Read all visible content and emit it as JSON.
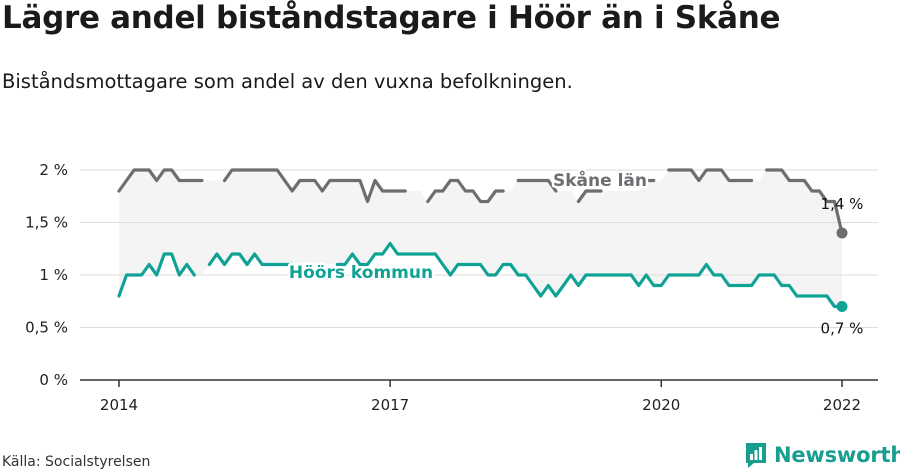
{
  "header": {
    "title": "Lägre andel biståndstagare i Höör än i Skåne",
    "subtitle": "Biståndsmottagare som andel av den vuxna befolkningen."
  },
  "footer": {
    "source": "Källa: Socialstyrelsen",
    "brand": "Newsworthy",
    "brand_icon": "newsworthy-logo-icon"
  },
  "colors": {
    "skane": "#6e6e72",
    "hoor": "#10a395",
    "band": "#f4f4f5",
    "grid": "#dedede",
    "axis": "#555555"
  },
  "chart_data": {
    "type": "line",
    "title": "Lägre andel biståndstagare i Höör än i Skåne",
    "subtitle": "Biståndsmottagare som andel av den vuxna befolkningen.",
    "x_unit": "year",
    "xlim": [
      2014,
      2022.4
    ],
    "ylim": [
      0,
      2.0
    ],
    "grid": true,
    "y_ticks": [
      {
        "value": 0,
        "label": "0 %"
      },
      {
        "value": 0.5,
        "label": "0,5 %"
      },
      {
        "value": 1.0,
        "label": "1 %"
      },
      {
        "value": 1.5,
        "label": "1,5 %"
      },
      {
        "value": 2.0,
        "label": "2 %"
      }
    ],
    "x_ticks": [
      {
        "value": 2014,
        "label": "2014"
      },
      {
        "value": 2017,
        "label": "2017"
      },
      {
        "value": 2020,
        "label": "2020"
      },
      {
        "value": 2022,
        "label": "2022"
      }
    ],
    "series": [
      {
        "name": "Skåne län",
        "color": "#6e6e72",
        "end_label": "1,4 %",
        "points": [
          [
            2014.0,
            1.8
          ],
          [
            2014.083,
            1.9
          ],
          [
            2014.167,
            2.0
          ],
          [
            2014.25,
            2.0
          ],
          [
            2014.333,
            2.0
          ],
          [
            2014.417,
            1.9
          ],
          [
            2014.5,
            2.0
          ],
          [
            2014.583,
            2.0
          ],
          [
            2014.667,
            1.9
          ],
          [
            2014.75,
            1.9
          ],
          [
            2014.833,
            1.9
          ],
          [
            2014.917,
            1.9
          ],
          [
            2015.0,
            null
          ],
          [
            2015.083,
            null
          ],
          [
            2015.167,
            1.9
          ],
          [
            2015.25,
            2.0
          ],
          [
            2015.333,
            2.0
          ],
          [
            2015.417,
            2.0
          ],
          [
            2015.5,
            2.0
          ],
          [
            2015.583,
            2.0
          ],
          [
            2015.667,
            2.0
          ],
          [
            2015.75,
            2.0
          ],
          [
            2015.833,
            1.9
          ],
          [
            2015.917,
            1.8
          ],
          [
            2016.0,
            1.9
          ],
          [
            2016.083,
            1.9
          ],
          [
            2016.167,
            1.9
          ],
          [
            2016.25,
            1.8
          ],
          [
            2016.333,
            1.9
          ],
          [
            2016.417,
            1.9
          ],
          [
            2016.5,
            1.9
          ],
          [
            2016.583,
            1.9
          ],
          [
            2016.667,
            1.9
          ],
          [
            2016.75,
            1.7
          ],
          [
            2016.833,
            1.9
          ],
          [
            2016.917,
            1.8
          ],
          [
            2017.0,
            1.8
          ],
          [
            2017.083,
            1.8
          ],
          [
            2017.167,
            1.8
          ],
          [
            2017.25,
            null
          ],
          [
            2017.333,
            null
          ],
          [
            2017.417,
            1.7
          ],
          [
            2017.5,
            1.8
          ],
          [
            2017.583,
            1.8
          ],
          [
            2017.667,
            1.9
          ],
          [
            2017.75,
            1.9
          ],
          [
            2017.833,
            1.8
          ],
          [
            2017.917,
            1.8
          ],
          [
            2018.0,
            1.7
          ],
          [
            2018.083,
            1.7
          ],
          [
            2018.167,
            1.8
          ],
          [
            2018.25,
            1.8
          ],
          [
            2018.333,
            null
          ],
          [
            2018.417,
            1.9
          ],
          [
            2018.5,
            1.9
          ],
          [
            2018.583,
            1.9
          ],
          [
            2018.667,
            1.9
          ],
          [
            2018.75,
            1.9
          ],
          [
            2018.833,
            1.8
          ],
          [
            2018.917,
            null
          ],
          [
            2019.0,
            null
          ],
          [
            2019.083,
            1.7
          ],
          [
            2019.167,
            1.8
          ],
          [
            2019.25,
            1.8
          ],
          [
            2019.333,
            1.8
          ],
          [
            2019.417,
            null
          ],
          [
            2019.5,
            null
          ],
          [
            2019.583,
            null
          ],
          [
            2019.667,
            null
          ],
          [
            2019.75,
            null
          ],
          [
            2019.833,
            1.9
          ],
          [
            2019.917,
            1.9
          ],
          [
            2020.0,
            null
          ],
          [
            2020.083,
            2.0
          ],
          [
            2020.167,
            2.0
          ],
          [
            2020.25,
            2.0
          ],
          [
            2020.333,
            2.0
          ],
          [
            2020.417,
            1.9
          ],
          [
            2020.5,
            2.0
          ],
          [
            2020.583,
            2.0
          ],
          [
            2020.667,
            2.0
          ],
          [
            2020.75,
            1.9
          ],
          [
            2020.833,
            1.9
          ],
          [
            2020.917,
            1.9
          ],
          [
            2021.0,
            1.9
          ],
          [
            2021.083,
            null
          ],
          [
            2021.167,
            2.0
          ],
          [
            2021.25,
            2.0
          ],
          [
            2021.333,
            2.0
          ],
          [
            2021.417,
            1.9
          ],
          [
            2021.5,
            1.9
          ],
          [
            2021.583,
            1.9
          ],
          [
            2021.667,
            1.8
          ],
          [
            2021.75,
            1.8
          ],
          [
            2021.833,
            1.7
          ],
          [
            2021.917,
            1.7
          ],
          [
            2022.0,
            1.4
          ]
        ]
      },
      {
        "name": "Höörs kommun",
        "color": "#10a395",
        "end_label": "0,7 %",
        "points": [
          [
            2014.0,
            0.8
          ],
          [
            2014.083,
            1.0
          ],
          [
            2014.167,
            1.0
          ],
          [
            2014.25,
            1.0
          ],
          [
            2014.333,
            1.1
          ],
          [
            2014.417,
            1.0
          ],
          [
            2014.5,
            1.2
          ],
          [
            2014.583,
            1.2
          ],
          [
            2014.667,
            1.0
          ],
          [
            2014.75,
            1.1
          ],
          [
            2014.833,
            1.0
          ],
          [
            2014.917,
            null
          ],
          [
            2015.0,
            1.1
          ],
          [
            2015.083,
            1.2
          ],
          [
            2015.167,
            1.1
          ],
          [
            2015.25,
            1.2
          ],
          [
            2015.333,
            1.2
          ],
          [
            2015.417,
            1.1
          ],
          [
            2015.5,
            1.2
          ],
          [
            2015.583,
            1.1
          ],
          [
            2015.667,
            1.1
          ],
          [
            2015.75,
            1.1
          ],
          [
            2015.833,
            1.1
          ],
          [
            2015.917,
            1.1
          ],
          [
            2016.0,
            null
          ],
          [
            2016.083,
            null
          ],
          [
            2016.167,
            null
          ],
          [
            2016.25,
            null
          ],
          [
            2016.333,
            null
          ],
          [
            2016.417,
            1.1
          ],
          [
            2016.5,
            1.1
          ],
          [
            2016.583,
            1.2
          ],
          [
            2016.667,
            1.1
          ],
          [
            2016.75,
            1.1
          ],
          [
            2016.833,
            1.2
          ],
          [
            2016.917,
            1.2
          ],
          [
            2017.0,
            1.3
          ],
          [
            2017.083,
            1.2
          ],
          [
            2017.167,
            1.2
          ],
          [
            2017.25,
            1.2
          ],
          [
            2017.333,
            1.2
          ],
          [
            2017.417,
            1.2
          ],
          [
            2017.5,
            1.2
          ],
          [
            2017.583,
            1.1
          ],
          [
            2017.667,
            1.0
          ],
          [
            2017.75,
            1.1
          ],
          [
            2017.833,
            1.1
          ],
          [
            2017.917,
            1.1
          ],
          [
            2018.0,
            1.1
          ],
          [
            2018.083,
            1.0
          ],
          [
            2018.167,
            1.0
          ],
          [
            2018.25,
            1.1
          ],
          [
            2018.333,
            1.1
          ],
          [
            2018.417,
            1.0
          ],
          [
            2018.5,
            1.0
          ],
          [
            2018.583,
            0.9
          ],
          [
            2018.667,
            0.8
          ],
          [
            2018.75,
            0.9
          ],
          [
            2018.833,
            0.8
          ],
          [
            2018.917,
            0.9
          ],
          [
            2019.0,
            1.0
          ],
          [
            2019.083,
            0.9
          ],
          [
            2019.167,
            1.0
          ],
          [
            2019.25,
            1.0
          ],
          [
            2019.333,
            1.0
          ],
          [
            2019.417,
            1.0
          ],
          [
            2019.5,
            1.0
          ],
          [
            2019.583,
            1.0
          ],
          [
            2019.667,
            1.0
          ],
          [
            2019.75,
            0.9
          ],
          [
            2019.833,
            1.0
          ],
          [
            2019.917,
            0.9
          ],
          [
            2020.0,
            0.9
          ],
          [
            2020.083,
            1.0
          ],
          [
            2020.167,
            1.0
          ],
          [
            2020.25,
            1.0
          ],
          [
            2020.333,
            1.0
          ],
          [
            2020.417,
            1.0
          ],
          [
            2020.5,
            1.1
          ],
          [
            2020.583,
            1.0
          ],
          [
            2020.667,
            1.0
          ],
          [
            2020.75,
            0.9
          ],
          [
            2020.833,
            0.9
          ],
          [
            2020.917,
            0.9
          ],
          [
            2021.0,
            0.9
          ],
          [
            2021.083,
            1.0
          ],
          [
            2021.167,
            1.0
          ],
          [
            2021.25,
            1.0
          ],
          [
            2021.333,
            0.9
          ],
          [
            2021.417,
            0.9
          ],
          [
            2021.5,
            0.8
          ],
          [
            2021.583,
            0.8
          ],
          [
            2021.667,
            0.8
          ],
          [
            2021.75,
            0.8
          ],
          [
            2021.833,
            0.8
          ],
          [
            2021.917,
            0.7
          ],
          [
            2022.0,
            0.7
          ]
        ]
      }
    ]
  }
}
